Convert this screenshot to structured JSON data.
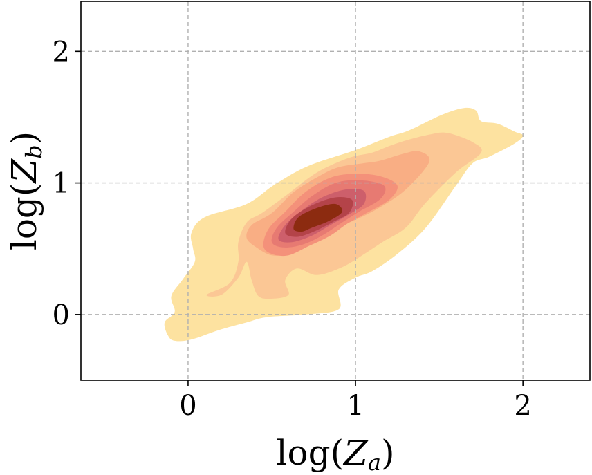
{
  "chart_data": {
    "type": "contour",
    "xlabel": "log(Z_a)",
    "ylabel": "log(Z_b)",
    "xlim": [
      -0.64,
      2.4
    ],
    "ylim": [
      -0.5,
      2.38
    ],
    "xticks": [
      0,
      1,
      2
    ],
    "yticks": [
      0,
      1,
      2
    ],
    "xtick_labels": [
      "0",
      "1",
      "2"
    ],
    "ytick_labels": [
      "0",
      "1",
      "2"
    ],
    "grid": true,
    "levels": [
      {
        "color": "#fde2a0",
        "points": [
          [
            -0.12,
            -0.16
          ],
          [
            -0.14,
            -0.06
          ],
          [
            -0.08,
            0.02
          ],
          [
            -0.1,
            0.14
          ],
          [
            -0.03,
            0.27
          ],
          [
            0.04,
            0.4
          ],
          [
            0.03,
            0.5
          ],
          [
            0.02,
            0.62
          ],
          [
            0.1,
            0.74
          ],
          [
            0.35,
            0.84
          ],
          [
            0.52,
            0.99
          ],
          [
            0.72,
            1.13
          ],
          [
            1.0,
            1.25
          ],
          [
            1.2,
            1.35
          ],
          [
            1.32,
            1.4
          ],
          [
            1.52,
            1.52
          ],
          [
            1.65,
            1.57
          ],
          [
            1.72,
            1.55
          ],
          [
            1.75,
            1.47
          ],
          [
            1.85,
            1.45
          ],
          [
            1.95,
            1.39
          ],
          [
            2.0,
            1.36
          ],
          [
            1.95,
            1.3
          ],
          [
            1.8,
            1.2
          ],
          [
            1.7,
            1.15
          ],
          [
            1.6,
            0.98
          ],
          [
            1.42,
            0.66
          ],
          [
            1.25,
            0.46
          ],
          [
            1.1,
            0.33
          ],
          [
            1.0,
            0.28
          ],
          [
            0.9,
            0.19
          ],
          [
            0.9,
            0.04
          ],
          [
            0.7,
            0.0
          ],
          [
            0.47,
            -0.02
          ],
          [
            0.35,
            -0.06
          ],
          [
            0.18,
            -0.12
          ],
          [
            0.02,
            -0.19
          ],
          [
            -0.08,
            -0.2
          ]
        ]
      },
      {
        "color": "#fbc795",
        "points": [
          [
            0.11,
            0.15
          ],
          [
            0.25,
            0.24
          ],
          [
            0.3,
            0.4
          ],
          [
            0.3,
            0.55
          ],
          [
            0.35,
            0.7
          ],
          [
            0.44,
            0.77
          ],
          [
            0.58,
            0.9
          ],
          [
            0.77,
            1.08
          ],
          [
            0.96,
            1.19
          ],
          [
            1.1,
            1.23
          ],
          [
            1.2,
            1.28
          ],
          [
            1.32,
            1.33
          ],
          [
            1.45,
            1.37
          ],
          [
            1.55,
            1.38
          ],
          [
            1.7,
            1.31
          ],
          [
            1.75,
            1.23
          ],
          [
            1.6,
            1.08
          ],
          [
            1.42,
            0.85
          ],
          [
            1.3,
            0.66
          ],
          [
            1.16,
            0.55
          ],
          [
            1.04,
            0.45
          ],
          [
            0.92,
            0.36
          ],
          [
            0.77,
            0.3
          ],
          [
            0.65,
            0.35
          ],
          [
            0.58,
            0.26
          ],
          [
            0.6,
            0.15
          ],
          [
            0.5,
            0.12
          ],
          [
            0.42,
            0.14
          ],
          [
            0.38,
            0.26
          ],
          [
            0.35,
            0.4
          ],
          [
            0.3,
            0.28
          ],
          [
            0.2,
            0.15
          ]
        ]
      },
      {
        "color": "#f9ae84",
        "points": [
          [
            0.35,
            0.58
          ],
          [
            0.38,
            0.68
          ],
          [
            0.5,
            0.77
          ],
          [
            0.63,
            0.93
          ],
          [
            0.78,
            1.05
          ],
          [
            0.9,
            1.12
          ],
          [
            1.05,
            1.15
          ],
          [
            1.15,
            1.17
          ],
          [
            1.28,
            1.22
          ],
          [
            1.38,
            1.24
          ],
          [
            1.44,
            1.16
          ],
          [
            1.3,
            0.95
          ],
          [
            1.14,
            0.81
          ],
          [
            1.0,
            0.72
          ],
          [
            0.9,
            0.67
          ],
          [
            0.78,
            0.62
          ],
          [
            0.7,
            0.53
          ],
          [
            0.6,
            0.46
          ],
          [
            0.5,
            0.45
          ],
          [
            0.42,
            0.5
          ]
        ]
      },
      {
        "color": "#f4917a",
        "points": [
          [
            0.45,
            0.52
          ],
          [
            0.48,
            0.65
          ],
          [
            0.58,
            0.78
          ],
          [
            0.7,
            0.93
          ],
          [
            0.85,
            1.04
          ],
          [
            1.0,
            1.07
          ],
          [
            1.15,
            1.05
          ],
          [
            1.25,
            0.98
          ],
          [
            1.2,
            0.87
          ],
          [
            1.05,
            0.76
          ],
          [
            0.95,
            0.69
          ],
          [
            0.85,
            0.6
          ],
          [
            0.72,
            0.52
          ],
          [
            0.6,
            0.45
          ],
          [
            0.5,
            0.46
          ]
        ]
      },
      {
        "color": "#e77a72",
        "points": [
          [
            0.5,
            0.55
          ],
          [
            0.53,
            0.66
          ],
          [
            0.63,
            0.78
          ],
          [
            0.74,
            0.9
          ],
          [
            0.88,
            1.0
          ],
          [
            1.03,
            1.02
          ],
          [
            1.17,
            0.98
          ],
          [
            1.15,
            0.88
          ],
          [
            1.02,
            0.78
          ],
          [
            0.92,
            0.7
          ],
          [
            0.8,
            0.6
          ],
          [
            0.68,
            0.53
          ],
          [
            0.57,
            0.51
          ]
        ]
      },
      {
        "color": "#cd5f6b",
        "points": [
          [
            0.54,
            0.57
          ],
          [
            0.58,
            0.68
          ],
          [
            0.68,
            0.79
          ],
          [
            0.8,
            0.89
          ],
          [
            0.94,
            0.95
          ],
          [
            1.05,
            0.94
          ],
          [
            1.05,
            0.84
          ],
          [
            0.96,
            0.76
          ],
          [
            0.85,
            0.68
          ],
          [
            0.74,
            0.6
          ],
          [
            0.62,
            0.55
          ]
        ]
      },
      {
        "color": "#b44349",
        "points": [
          [
            0.58,
            0.62
          ],
          [
            0.62,
            0.73
          ],
          [
            0.74,
            0.83
          ],
          [
            0.88,
            0.89
          ],
          [
            0.98,
            0.87
          ],
          [
            0.96,
            0.77
          ],
          [
            0.86,
            0.7
          ],
          [
            0.75,
            0.63
          ],
          [
            0.65,
            0.59
          ]
        ]
      },
      {
        "color": "#8c2b10",
        "points": [
          [
            0.63,
            0.65
          ],
          [
            0.66,
            0.74
          ],
          [
            0.77,
            0.81
          ],
          [
            0.88,
            0.84
          ],
          [
            0.92,
            0.78
          ],
          [
            0.84,
            0.71
          ],
          [
            0.74,
            0.66
          ],
          [
            0.68,
            0.63
          ]
        ]
      }
    ]
  }
}
